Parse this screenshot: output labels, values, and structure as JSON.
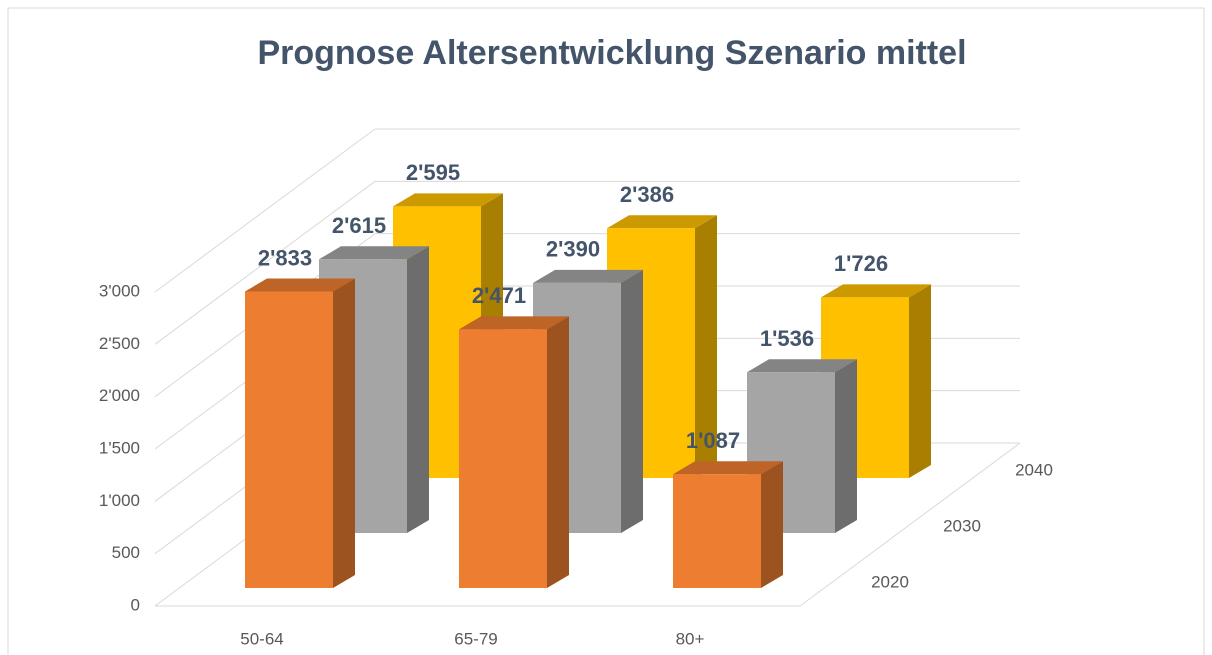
{
  "chart_data": {
    "type": "bar3d",
    "title": "Prognose Altersentwicklung Szenario mittel",
    "categories": [
      "50-64",
      "65-79",
      "80+"
    ],
    "series": [
      {
        "name": "2020",
        "color": "#ED7D31",
        "values": [
          2833,
          2471,
          1087
        ],
        "value_labels": [
          "2'833",
          "2'471",
          "1'087"
        ]
      },
      {
        "name": "2030",
        "color": "#A5A5A5",
        "values": [
          2615,
          2390,
          1536
        ],
        "value_labels": [
          "2'615",
          "2'390",
          "1'536"
        ]
      },
      {
        "name": "2040",
        "color": "#FFC000",
        "values": [
          2595,
          2386,
          1726
        ],
        "value_labels": [
          "2'595",
          "2'386",
          "1'726"
        ]
      }
    ],
    "ylim": [
      0,
      3000
    ],
    "yticks": [
      0,
      500,
      {
        "value": 1000,
        "label": "1'000"
      },
      {
        "value": 1500,
        "label": "1'500"
      },
      {
        "value": 2000,
        "label": "2'000"
      },
      {
        "value": 2500,
        "label": "2'500"
      },
      {
        "value": 3000,
        "label": "3'000"
      }
    ],
    "grid": true
  }
}
